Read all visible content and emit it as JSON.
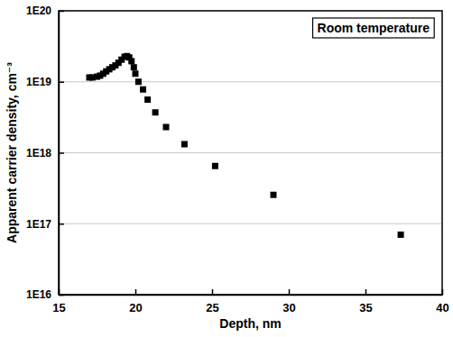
{
  "chart_data": {
    "type": "scatter",
    "x_label": "Depth, nm",
    "y_label": "Apparent carrier density, cm⁻³",
    "annotations": [
      "Room temperature"
    ],
    "x": [
      17.0,
      17.2,
      17.5,
      17.7,
      17.9,
      18.1,
      18.3,
      18.5,
      18.7,
      18.9,
      19.1,
      19.3,
      19.45,
      19.6,
      19.75,
      19.9,
      20.0,
      20.2,
      20.5,
      20.8,
      21.3,
      22.0,
      23.2,
      25.2,
      29.0,
      37.3
    ],
    "values": [
      1.15e+19,
      1.15e+19,
      1.18e+19,
      1.22e+19,
      1.3e+19,
      1.4e+19,
      1.5e+19,
      1.6e+19,
      1.7e+19,
      1.85e+19,
      2.05e+19,
      2.25e+19,
      2.3e+19,
      2.2e+19,
      1.95e+19,
      1.6e+19,
      1.3e+19,
      1e+19,
      7.8e+18,
      5.6e+18,
      3.7e+18,
      2.3e+18,
      1.32e+18,
      6.5e+17,
      2.55e+17,
      7e+16
    ],
    "color": "#000000",
    "marker": "square",
    "log": "y",
    "grid": true,
    "xlim": [
      15,
      40
    ],
    "xticks": [
      15,
      20,
      25,
      30,
      35,
      40
    ],
    "ylim": [
      1e+16,
      1e+20
    ],
    "yticks": [
      {
        "value": 1e+16,
        "label": "1E16"
      },
      {
        "value": 1e+17,
        "label": "1E17"
      },
      {
        "value": 1e+18,
        "label": "1E18"
      },
      {
        "value": 1e+19,
        "label": "1E19"
      },
      {
        "value": 1e+20,
        "label": "1E20"
      }
    ]
  }
}
